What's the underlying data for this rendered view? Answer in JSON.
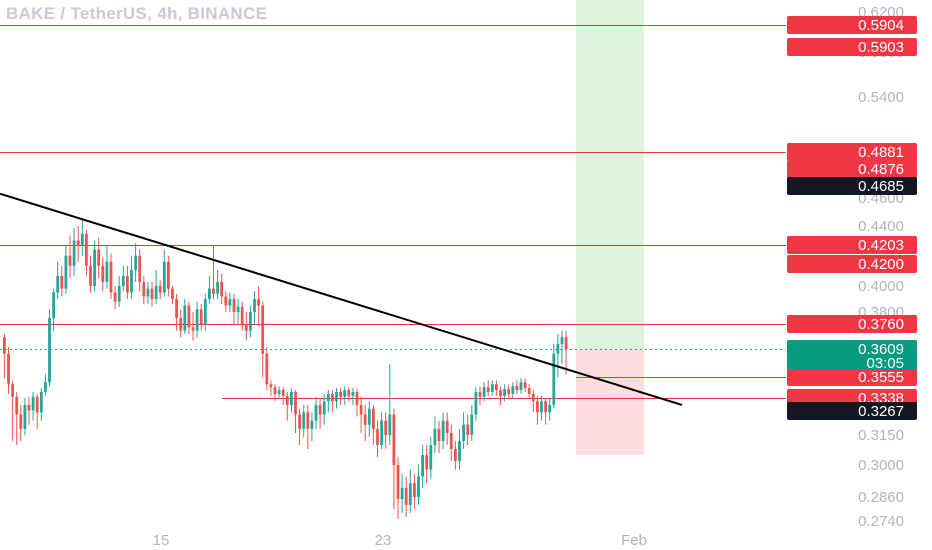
{
  "title": "BAKE / TetherUS, 4h, BINANCE",
  "colors": {
    "up": "#26a69a",
    "down": "#ef5350",
    "level_line": "#e53935",
    "level_tag": "#f23645",
    "black_tag": "#131722",
    "current_tag": "#089981",
    "profit_zone": "#dff2df",
    "loss_zone": "#fcdde0",
    "trendline": "#000000",
    "axis_text": "#b2b5be"
  },
  "chart_data": {
    "type": "candlestick",
    "title": "BAKE / TetherUS, 4h, BINANCE",
    "x_ticks": [
      "15",
      "23",
      "Feb"
    ],
    "y_ticks": [
      "0.6200",
      "0.5800",
      "0.5400",
      "0.4600",
      "0.4400",
      "0.4000",
      "0.3800",
      "0.3150",
      "0.3000",
      "0.2860",
      "0.2740"
    ],
    "horizontal_levels": [
      "0.5904",
      "0.4881",
      "0.4203",
      "0.3760",
      "0.3555",
      "0.3338"
    ],
    "price_tags": [
      {
        "value": "0.5904",
        "style": "red"
      },
      {
        "value": "0.5903",
        "style": "red"
      },
      {
        "value": "0.4881",
        "style": "red"
      },
      {
        "value": "0.4876",
        "style": "red"
      },
      {
        "value": "0.4685",
        "style": "black"
      },
      {
        "value": "0.4203",
        "style": "red"
      },
      {
        "value": "0.4200",
        "style": "red"
      },
      {
        "value": "0.3760",
        "style": "red"
      },
      {
        "value": "0.3555",
        "style": "red"
      },
      {
        "value": "0.3338",
        "style": "red"
      },
      {
        "value": "0.3267",
        "style": "black"
      }
    ],
    "current_price": {
      "value": "0.3609",
      "countdown": "03:05"
    },
    "trendline": {
      "from_price": 0.463,
      "to_price": 0.33
    },
    "position": {
      "entry": 0.3609,
      "target": 0.62,
      "stop": 0.305
    },
    "grid": false,
    "candles": [
      [
        0.368,
        0.36,
        0.37,
        0.354
      ],
      [
        0.36,
        0.348,
        0.362,
        0.338
      ],
      [
        0.348,
        0.335,
        0.352,
        0.312
      ],
      [
        0.335,
        0.325,
        0.34,
        0.31
      ],
      [
        0.325,
        0.318,
        0.33,
        0.312
      ],
      [
        0.318,
        0.33,
        0.334,
        0.315
      ],
      [
        0.33,
        0.327,
        0.335,
        0.32
      ],
      [
        0.327,
        0.335,
        0.34,
        0.322
      ],
      [
        0.335,
        0.326,
        0.338,
        0.318
      ],
      [
        0.326,
        0.34,
        0.344,
        0.322
      ],
      [
        0.34,
        0.35,
        0.356,
        0.336
      ],
      [
        0.35,
        0.378,
        0.382,
        0.346
      ],
      [
        0.378,
        0.395,
        0.398,
        0.372
      ],
      [
        0.395,
        0.405,
        0.412,
        0.39
      ],
      [
        0.405,
        0.398,
        0.41,
        0.392
      ],
      [
        0.398,
        0.415,
        0.42,
        0.394
      ],
      [
        0.415,
        0.41,
        0.43,
        0.404
      ],
      [
        0.41,
        0.425,
        0.438,
        0.405
      ],
      [
        0.425,
        0.42,
        0.44,
        0.412
      ],
      [
        0.42,
        0.432,
        0.445,
        0.415
      ],
      [
        0.432,
        0.41,
        0.436,
        0.405
      ],
      [
        0.41,
        0.4,
        0.415,
        0.395
      ],
      [
        0.4,
        0.418,
        0.425,
        0.396
      ],
      [
        0.418,
        0.41,
        0.428,
        0.404
      ],
      [
        0.41,
        0.402,
        0.414,
        0.396
      ],
      [
        0.402,
        0.412,
        0.42,
        0.398
      ],
      [
        0.412,
        0.395,
        0.416,
        0.39
      ],
      [
        0.395,
        0.388,
        0.4,
        0.382
      ],
      [
        0.388,
        0.4,
        0.405,
        0.384
      ],
      [
        0.4,
        0.405,
        0.41,
        0.396
      ],
      [
        0.405,
        0.395,
        0.41,
        0.39
      ],
      [
        0.395,
        0.408,
        0.415,
        0.39
      ],
      [
        0.408,
        0.415,
        0.422,
        0.402
      ],
      [
        0.415,
        0.402,
        0.418,
        0.396
      ],
      [
        0.402,
        0.392,
        0.405,
        0.386
      ],
      [
        0.392,
        0.398,
        0.402,
        0.386
      ],
      [
        0.398,
        0.39,
        0.402,
        0.384
      ],
      [
        0.39,
        0.4,
        0.408,
        0.386
      ],
      [
        0.4,
        0.395,
        0.403,
        0.39
      ],
      [
        0.395,
        0.412,
        0.418,
        0.392
      ],
      [
        0.412,
        0.398,
        0.415,
        0.392
      ],
      [
        0.398,
        0.39,
        0.4,
        0.386
      ],
      [
        0.39,
        0.378,
        0.394,
        0.372
      ],
      [
        0.378,
        0.372,
        0.382,
        0.368
      ],
      [
        0.372,
        0.385,
        0.39,
        0.37
      ],
      [
        0.385,
        0.374,
        0.388,
        0.37
      ],
      [
        0.374,
        0.372,
        0.38,
        0.366
      ],
      [
        0.372,
        0.382,
        0.388,
        0.368
      ],
      [
        0.382,
        0.376,
        0.386,
        0.372
      ],
      [
        0.376,
        0.39,
        0.394,
        0.372
      ],
      [
        0.39,
        0.398,
        0.405,
        0.386
      ],
      [
        0.398,
        0.394,
        0.42,
        0.39
      ],
      [
        0.394,
        0.402,
        0.408,
        0.39
      ],
      [
        0.402,
        0.392,
        0.406,
        0.386
      ],
      [
        0.392,
        0.385,
        0.396,
        0.38
      ],
      [
        0.385,
        0.39,
        0.395,
        0.38
      ],
      [
        0.39,
        0.38,
        0.394,
        0.376
      ],
      [
        0.38,
        0.384,
        0.39,
        0.376
      ],
      [
        0.384,
        0.376,
        0.388,
        0.372
      ],
      [
        0.376,
        0.372,
        0.38,
        0.366
      ],
      [
        0.372,
        0.38,
        0.385,
        0.368
      ],
      [
        0.38,
        0.39,
        0.396,
        0.376
      ],
      [
        0.39,
        0.385,
        0.4,
        0.375
      ],
      [
        0.385,
        0.36,
        0.388,
        0.355
      ],
      [
        0.36,
        0.348,
        0.362,
        0.342
      ],
      [
        0.348,
        0.345,
        0.352,
        0.336
      ],
      [
        0.345,
        0.338,
        0.348,
        0.332
      ],
      [
        0.338,
        0.342,
        0.346,
        0.334
      ],
      [
        0.342,
        0.336,
        0.345,
        0.33
      ],
      [
        0.336,
        0.33,
        0.34,
        0.322
      ],
      [
        0.33,
        0.34,
        0.344,
        0.326
      ],
      [
        0.34,
        0.325,
        0.342,
        0.316
      ],
      [
        0.325,
        0.318,
        0.328,
        0.31
      ],
      [
        0.318,
        0.326,
        0.33,
        0.314
      ],
      [
        0.326,
        0.318,
        0.33,
        0.308
      ],
      [
        0.318,
        0.322,
        0.326,
        0.312
      ],
      [
        0.322,
        0.33,
        0.335,
        0.318
      ],
      [
        0.33,
        0.325,
        0.334,
        0.318
      ],
      [
        0.325,
        0.332,
        0.338,
        0.32
      ],
      [
        0.332,
        0.338,
        0.342,
        0.326
      ],
      [
        0.338,
        0.332,
        0.342,
        0.326
      ],
      [
        0.332,
        0.34,
        0.344,
        0.328
      ],
      [
        0.34,
        0.335,
        0.344,
        0.33
      ],
      [
        0.335,
        0.342,
        0.346,
        0.33
      ],
      [
        0.342,
        0.336,
        0.345,
        0.332
      ],
      [
        0.336,
        0.34,
        0.344,
        0.33
      ],
      [
        0.34,
        0.33,
        0.343,
        0.324
      ],
      [
        0.33,
        0.325,
        0.335,
        0.316
      ],
      [
        0.325,
        0.32,
        0.33,
        0.312
      ],
      [
        0.32,
        0.328,
        0.332,
        0.314
      ],
      [
        0.328,
        0.318,
        0.33,
        0.31
      ],
      [
        0.318,
        0.31,
        0.322,
        0.304
      ],
      [
        0.31,
        0.322,
        0.326,
        0.308
      ],
      [
        0.322,
        0.315,
        0.326,
        0.308
      ],
      [
        0.315,
        0.325,
        0.358,
        0.31
      ],
      [
        0.325,
        0.3,
        0.328,
        0.28
      ],
      [
        0.3,
        0.285,
        0.304,
        0.275
      ],
      [
        0.285,
        0.29,
        0.296,
        0.278
      ],
      [
        0.29,
        0.282,
        0.295,
        0.276
      ],
      [
        0.282,
        0.292,
        0.298,
        0.278
      ],
      [
        0.292,
        0.286,
        0.296,
        0.28
      ],
      [
        0.286,
        0.295,
        0.3,
        0.282
      ],
      [
        0.295,
        0.305,
        0.31,
        0.29
      ],
      [
        0.305,
        0.298,
        0.31,
        0.292
      ],
      [
        0.298,
        0.31,
        0.314,
        0.294
      ],
      [
        0.31,
        0.318,
        0.324,
        0.306
      ],
      [
        0.318,
        0.312,
        0.322,
        0.306
      ],
      [
        0.312,
        0.322,
        0.326,
        0.308
      ],
      [
        0.322,
        0.316,
        0.326,
        0.31
      ],
      [
        0.316,
        0.308,
        0.32,
        0.302
      ],
      [
        0.308,
        0.302,
        0.312,
        0.298
      ],
      [
        0.302,
        0.312,
        0.318,
        0.298
      ],
      [
        0.312,
        0.32,
        0.326,
        0.308
      ],
      [
        0.32,
        0.315,
        0.325,
        0.31
      ],
      [
        0.315,
        0.325,
        0.33,
        0.312
      ],
      [
        0.325,
        0.34,
        0.345,
        0.322
      ],
      [
        0.34,
        0.335,
        0.346,
        0.33
      ],
      [
        0.335,
        0.345,
        0.35,
        0.332
      ],
      [
        0.345,
        0.34,
        0.352,
        0.336
      ],
      [
        0.34,
        0.348,
        0.352,
        0.336
      ],
      [
        0.348,
        0.342,
        0.352,
        0.336
      ],
      [
        0.342,
        0.336,
        0.346,
        0.33
      ],
      [
        0.336,
        0.343,
        0.348,
        0.332
      ],
      [
        0.343,
        0.338,
        0.348,
        0.334
      ],
      [
        0.338,
        0.346,
        0.35,
        0.334
      ],
      [
        0.346,
        0.342,
        0.352,
        0.338
      ],
      [
        0.342,
        0.35,
        0.354,
        0.338
      ],
      [
        0.35,
        0.344,
        0.354,
        0.34
      ],
      [
        0.344,
        0.338,
        0.348,
        0.334
      ],
      [
        0.338,
        0.332,
        0.342,
        0.326
      ],
      [
        0.332,
        0.326,
        0.336,
        0.32
      ],
      [
        0.326,
        0.332,
        0.336,
        0.322
      ],
      [
        0.332,
        0.326,
        0.334,
        0.32
      ],
      [
        0.326,
        0.33,
        0.334,
        0.322
      ],
      [
        0.33,
        0.36,
        0.364,
        0.328
      ],
      [
        0.36,
        0.364,
        0.37,
        0.355
      ],
      [
        0.364,
        0.368,
        0.372,
        0.358
      ],
      [
        0.368,
        0.3609,
        0.372,
        0.356
      ]
    ]
  }
}
